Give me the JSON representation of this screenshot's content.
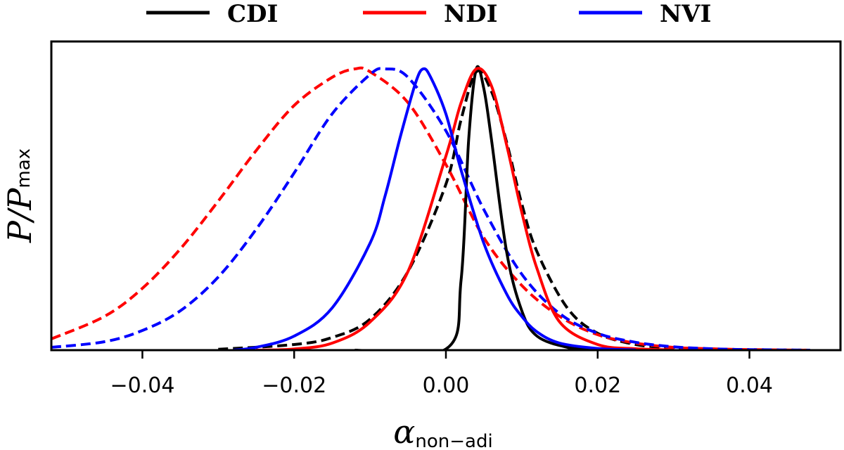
{
  "chart_data": {
    "type": "line",
    "title": "",
    "xlabel": {
      "symbol": "α",
      "subscript": "non−adi"
    },
    "ylabel": {
      "symbol": "P/P",
      "subscript": "max"
    },
    "xlim": [
      -0.052,
      0.052
    ],
    "ylim": [
      0,
      1.0
    ],
    "xticks": [
      -0.04,
      -0.02,
      0.0,
      0.02,
      0.04
    ],
    "xtick_labels": [
      "−0.04",
      "−0.02",
      "0.00",
      "0.02",
      "0.04"
    ],
    "yticks_visible": false,
    "legend": {
      "placement": "top-center",
      "entries": [
        {
          "label": "CDI",
          "color": "#000000"
        },
        {
          "label": "NDI",
          "color": "#ff0000"
        },
        {
          "label": "NVI",
          "color": "#0000ff"
        }
      ]
    },
    "series": [
      {
        "name": "CDI solid",
        "model": "CDI",
        "style": "solid",
        "color": "#000000",
        "x": [
          -0.012,
          0.0,
          0.002,
          0.003,
          0.004,
          0.005,
          0.006,
          0.008,
          0.01,
          0.012,
          0.016,
          0.02
        ],
        "y": [
          0.0,
          0.004,
          0.25,
          0.75,
          1.0,
          0.93,
          0.75,
          0.35,
          0.14,
          0.05,
          0.01,
          0.001
        ]
      },
      {
        "name": "CDI dashed",
        "model": "CDI",
        "style": "dashed",
        "color": "#000000",
        "x": [
          -0.03,
          -0.02,
          -0.015,
          -0.01,
          -0.005,
          0.0,
          0.002,
          0.004,
          0.006,
          0.008,
          0.01,
          0.012,
          0.016,
          0.02,
          0.025,
          0.03,
          0.035
        ],
        "y": [
          0.003,
          0.02,
          0.045,
          0.11,
          0.28,
          0.59,
          0.82,
          0.99,
          0.92,
          0.74,
          0.52,
          0.35,
          0.15,
          0.06,
          0.02,
          0.008,
          0.002
        ]
      },
      {
        "name": "NDI solid",
        "model": "NDI",
        "style": "solid",
        "color": "#ff0000",
        "x": [
          -0.025,
          -0.02,
          -0.015,
          -0.01,
          -0.005,
          0.0,
          0.002,
          0.004,
          0.006,
          0.008,
          0.01,
          0.012,
          0.015,
          0.02,
          0.025,
          0.03
        ],
        "y": [
          0.0,
          0.004,
          0.025,
          0.1,
          0.28,
          0.69,
          0.88,
          1.0,
          0.94,
          0.73,
          0.49,
          0.29,
          0.1,
          0.02,
          0.005,
          0.001
        ]
      },
      {
        "name": "NDI dashed",
        "model": "NDI",
        "style": "dashed",
        "color": "#ff0000",
        "x": [
          -0.052,
          -0.045,
          -0.04,
          -0.035,
          -0.03,
          -0.025,
          -0.02,
          -0.015,
          -0.012,
          -0.01,
          -0.005,
          0.0,
          0.005,
          0.01,
          0.015,
          0.02,
          0.025,
          0.03,
          0.035,
          0.04,
          0.048
        ],
        "y": [
          0.04,
          0.12,
          0.22,
          0.36,
          0.53,
          0.71,
          0.87,
          0.97,
          1.0,
          0.99,
          0.88,
          0.66,
          0.4,
          0.23,
          0.12,
          0.055,
          0.025,
          0.01,
          0.005,
          0.002,
          0.0
        ]
      },
      {
        "name": "NVI solid",
        "model": "NVI",
        "style": "solid",
        "color": "#0000ff",
        "x": [
          -0.028,
          -0.025,
          -0.02,
          -0.015,
          -0.01,
          -0.008,
          -0.006,
          -0.004,
          -0.003,
          -0.002,
          0.0,
          0.002,
          0.005,
          0.008,
          0.01,
          0.012,
          0.015,
          0.02,
          0.025
        ],
        "y": [
          0.0,
          0.01,
          0.05,
          0.15,
          0.38,
          0.55,
          0.76,
          0.95,
          1.0,
          0.97,
          0.84,
          0.64,
          0.38,
          0.2,
          0.12,
          0.065,
          0.025,
          0.006,
          0.001
        ]
      },
      {
        "name": "NVI dashed",
        "model": "NVI",
        "style": "dashed",
        "color": "#0000ff",
        "x": [
          -0.052,
          -0.045,
          -0.04,
          -0.035,
          -0.03,
          -0.025,
          -0.02,
          -0.015,
          -0.01,
          -0.008,
          -0.005,
          0.0,
          0.005,
          0.01,
          0.015,
          0.02,
          0.025,
          0.03,
          0.035,
          0.04,
          0.048
        ],
        "y": [
          0.01,
          0.03,
          0.07,
          0.14,
          0.26,
          0.43,
          0.63,
          0.84,
          0.98,
          1.0,
          0.97,
          0.78,
          0.5,
          0.27,
          0.13,
          0.06,
          0.028,
          0.012,
          0.005,
          0.002,
          0.0
        ]
      }
    ]
  }
}
